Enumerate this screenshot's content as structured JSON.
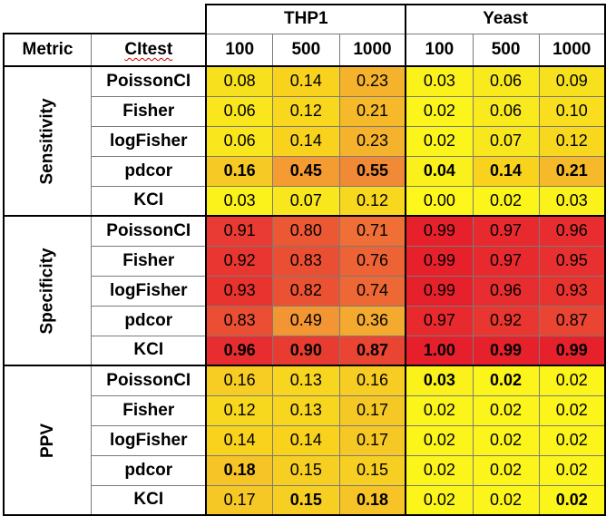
{
  "header": {
    "metric_label": "Metric",
    "citest_label": "CItest",
    "groups": [
      {
        "name": "THP1",
        "sizes": [
          "100",
          "500",
          "1000"
        ]
      },
      {
        "name": "Yeast",
        "sizes": [
          "100",
          "500",
          "1000"
        ]
      }
    ]
  },
  "metrics": [
    {
      "name": "Sensitivity",
      "rows": [
        {
          "test": "PoissonCI",
          "values": [
            "0.08",
            "0.14",
            "0.23",
            "0.03",
            "0.06",
            "0.09"
          ],
          "bold": [
            false,
            false,
            false,
            false,
            false,
            false
          ],
          "colors": [
            "#f7e01e",
            "#f8d21d",
            "#f5b22c",
            "#fbf21b",
            "#f9ea1e",
            "#f7e11f"
          ]
        },
        {
          "test": "Fisher",
          "values": [
            "0.06",
            "0.12",
            "0.21",
            "0.02",
            "0.06",
            "0.10"
          ],
          "bold": [
            false,
            false,
            false,
            false,
            false,
            false
          ],
          "colors": [
            "#f9e61d",
            "#f8d71d",
            "#f6b929",
            "#fcf51b",
            "#f9ea1e",
            "#f8de1f"
          ]
        },
        {
          "test": "logFisher",
          "values": [
            "0.06",
            "0.14",
            "0.23",
            "0.02",
            "0.07",
            "0.12"
          ],
          "bold": [
            false,
            false,
            false,
            false,
            false,
            false
          ],
          "colors": [
            "#f9e61d",
            "#f8d21d",
            "#f5b22c",
            "#fcf51b",
            "#f9e71e",
            "#f8d81e"
          ]
        },
        {
          "test": "pdcor",
          "values": [
            "0.16",
            "0.45",
            "0.55",
            "0.04",
            "0.14",
            "0.21"
          ],
          "bold": [
            true,
            true,
            true,
            true,
            true,
            true
          ],
          "colors": [
            "#f7c925",
            "#f49b32",
            "#f18a36",
            "#faf01c",
            "#f8d21d",
            "#f6b929"
          ]
        },
        {
          "test": "KCI",
          "values": [
            "0.03",
            "0.07",
            "0.12",
            "0.00",
            "0.02",
            "0.03"
          ],
          "bold": [
            false,
            false,
            false,
            false,
            false,
            false
          ],
          "colors": [
            "#fbf21b",
            "#f9e71e",
            "#f8d81e",
            "#fdf71b",
            "#fcf51b",
            "#fbf21b"
          ]
        }
      ]
    },
    {
      "name": "Specificity",
      "rows": [
        {
          "test": "PoissonCI",
          "values": [
            "0.91",
            "0.80",
            "0.71",
            "0.99",
            "0.97",
            "0.96"
          ],
          "bold": [
            false,
            false,
            false,
            false,
            false,
            false
          ],
          "colors": [
            "#e93a33",
            "#ec5834",
            "#ef6f36",
            "#e7212c",
            "#e82a2f",
            "#e82d30"
          ]
        },
        {
          "test": "Fisher",
          "values": [
            "0.92",
            "0.83",
            "0.76",
            "0.99",
            "0.97",
            "0.95"
          ],
          "bold": [
            false,
            false,
            false,
            false,
            false,
            false
          ],
          "colors": [
            "#e93630",
            "#eb4f33",
            "#ee6335",
            "#e7212c",
            "#e82a2f",
            "#e83030"
          ]
        },
        {
          "test": "logFisher",
          "values": [
            "0.93",
            "0.82",
            "0.74",
            "0.99",
            "0.96",
            "0.93"
          ],
          "bold": [
            false,
            false,
            false,
            false,
            false,
            false
          ],
          "colors": [
            "#e9332f",
            "#eb5233",
            "#ee6835",
            "#e7212c",
            "#e82d30",
            "#e9332f"
          ]
        },
        {
          "test": "pdcor",
          "values": [
            "0.83",
            "0.49",
            "0.36",
            "0.97",
            "0.92",
            "0.87"
          ],
          "bold": [
            false,
            false,
            false,
            false,
            false,
            false
          ],
          "colors": [
            "#eb4f33",
            "#f39533",
            "#f4aa2e",
            "#e82a2f",
            "#e93630",
            "#ea4432"
          ]
        },
        {
          "test": "KCI",
          "values": [
            "0.96",
            "0.90",
            "0.87",
            "1.00",
            "0.99",
            "0.99"
          ],
          "bold": [
            true,
            true,
            true,
            true,
            true,
            true
          ],
          "colors": [
            "#e82d30",
            "#e93c31",
            "#ea4432",
            "#e71f2c",
            "#e7212c",
            "#e7212c"
          ]
        }
      ]
    },
    {
      "name": "PPV",
      "rows": [
        {
          "test": "PoissonCI",
          "values": [
            "0.16",
            "0.13",
            "0.16",
            "0.03",
            "0.02",
            "0.02"
          ],
          "bold": [
            false,
            false,
            false,
            true,
            true,
            false
          ],
          "colors": [
            "#f7cd23",
            "#f8d51e",
            "#f7cd23",
            "#fbf21b",
            "#fcf51b",
            "#fcf51b"
          ]
        },
        {
          "test": "Fisher",
          "values": [
            "0.12",
            "0.13",
            "0.17",
            "0.02",
            "0.02",
            "0.02"
          ],
          "bold": [
            false,
            false,
            false,
            false,
            false,
            false
          ],
          "colors": [
            "#f8d81e",
            "#f8d51e",
            "#f6c826",
            "#fcf51b",
            "#fcf51b",
            "#fcf51b"
          ]
        },
        {
          "test": "logFisher",
          "values": [
            "0.14",
            "0.14",
            "0.17",
            "0.02",
            "0.02",
            "0.02"
          ],
          "bold": [
            false,
            false,
            false,
            false,
            false,
            false
          ],
          "colors": [
            "#f8d21d",
            "#f8d21d",
            "#f6c826",
            "#fcf51b",
            "#fcf51b",
            "#fcf51b"
          ]
        },
        {
          "test": "pdcor",
          "values": [
            "0.18",
            "0.15",
            "0.15",
            "0.02",
            "0.02",
            "0.02"
          ],
          "bold": [
            true,
            false,
            false,
            false,
            false,
            false
          ],
          "colors": [
            "#f6c427",
            "#f7cf22",
            "#f7cf22",
            "#fcf51b",
            "#fcf51b",
            "#fcf51b"
          ]
        },
        {
          "test": "KCI",
          "values": [
            "0.17",
            "0.15",
            "0.18",
            "0.02",
            "0.02",
            "0.02"
          ],
          "bold": [
            false,
            true,
            true,
            false,
            false,
            true
          ],
          "colors": [
            "#f6c826",
            "#f7cf22",
            "#f6c427",
            "#fcf51b",
            "#fcf51b",
            "#fcf51b"
          ]
        }
      ]
    }
  ]
}
